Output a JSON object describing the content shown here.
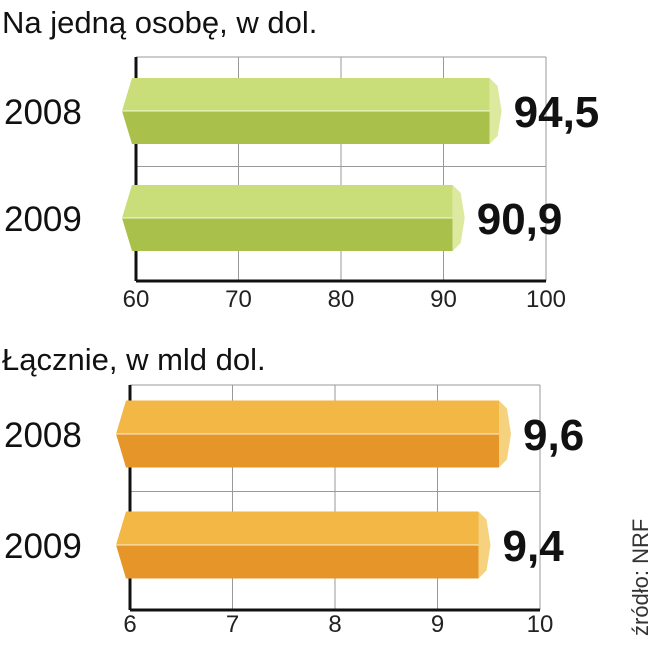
{
  "source": "źródło: NRF",
  "colors": {
    "green_top": "#c9de79",
    "green_bottom": "#a9c04b",
    "green_tip": "#dde99e",
    "orange_top": "#f3b746",
    "orange_bottom": "#e69628",
    "orange_tip": "#f6d27f",
    "grid": "#999999",
    "axis": "#111111"
  },
  "chart_data": [
    {
      "type": "bar",
      "orientation": "horizontal",
      "title": "Na jedną osobę, w dol.",
      "categories": [
        "2008",
        "2009"
      ],
      "values": [
        94.5,
        90.9
      ],
      "value_labels": [
        "94,5",
        "90,9"
      ],
      "xlim": [
        60,
        100
      ],
      "ticks": [
        "60",
        "70",
        "80",
        "90",
        "100"
      ],
      "grid": true,
      "color_scheme": "green"
    },
    {
      "type": "bar",
      "orientation": "horizontal",
      "title": "Łącznie, w mld dol.",
      "categories": [
        "2008",
        "2009"
      ],
      "values": [
        9.6,
        9.4
      ],
      "value_labels": [
        "9,6",
        "9,4"
      ],
      "xlim": [
        6,
        10
      ],
      "ticks": [
        "6",
        "7",
        "8",
        "9",
        "10"
      ],
      "grid": true,
      "color_scheme": "orange"
    }
  ]
}
